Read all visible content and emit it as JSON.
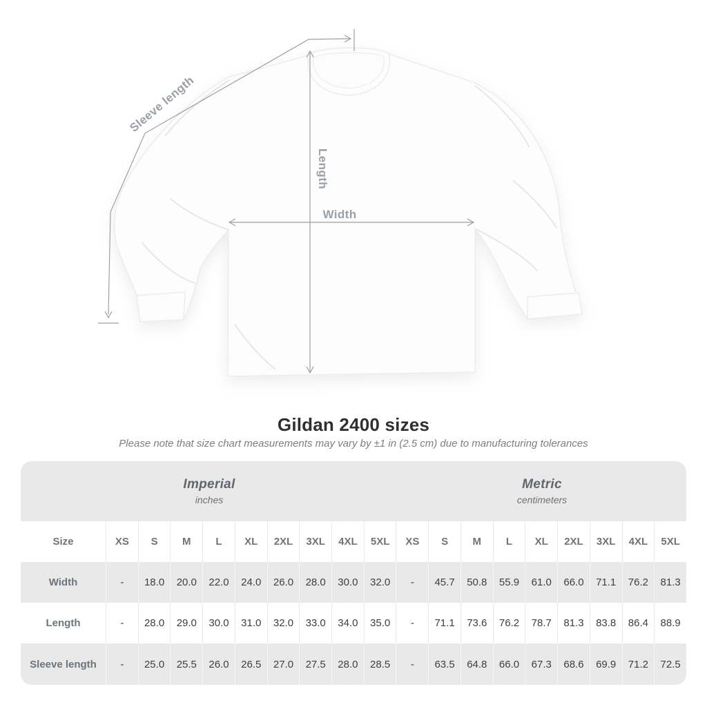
{
  "figure": {
    "labels": {
      "sleeve_length": "Sleeve length",
      "length": "Length",
      "width": "Width"
    },
    "line_color": "#9aa0a5"
  },
  "title": "Gildan 2400 sizes",
  "subtitle": "Please note that size chart measurements may vary by ±1 in (2.5 cm) due to manufacturing tolerances",
  "table": {
    "unit_groups": [
      {
        "name": "Imperial",
        "unit": "inches"
      },
      {
        "name": "Metric",
        "unit": "centimeters"
      }
    ],
    "size_header": "Size",
    "sizes": [
      "XS",
      "S",
      "M",
      "L",
      "XL",
      "2XL",
      "3XL",
      "4XL",
      "5XL"
    ],
    "rows": [
      {
        "label": "Width",
        "imperial": [
          "-",
          "18.0",
          "20.0",
          "22.0",
          "24.0",
          "26.0",
          "28.0",
          "30.0",
          "32.0"
        ],
        "metric": [
          "-",
          "45.7",
          "50.8",
          "55.9",
          "61.0",
          "66.0",
          "71.1",
          "76.2",
          "81.3"
        ]
      },
      {
        "label": "Length",
        "imperial": [
          "-",
          "28.0",
          "29.0",
          "30.0",
          "31.0",
          "32.0",
          "33.0",
          "34.0",
          "35.0"
        ],
        "metric": [
          "-",
          "71.1",
          "73.6",
          "76.2",
          "78.7",
          "81.3",
          "83.8",
          "86.4",
          "88.9"
        ]
      },
      {
        "label": "Sleeve length",
        "imperial": [
          "-",
          "25.0",
          "25.5",
          "26.0",
          "26.5",
          "27.0",
          "27.5",
          "28.0",
          "28.5"
        ],
        "metric": [
          "-",
          "63.5",
          "64.8",
          "66.0",
          "67.3",
          "68.6",
          "69.9",
          "71.2",
          "72.5"
        ]
      }
    ],
    "colors": {
      "container_bg": "#e9e9e9",
      "alt_row_bg": "#ffffff",
      "header_text": "#6d747a",
      "value_text": "#3a3f44"
    }
  },
  "chart_data": {
    "type": "table",
    "title": "Gildan 2400 sizes",
    "columns": [
      "Size",
      "XS",
      "S",
      "M",
      "L",
      "XL",
      "2XL",
      "3XL",
      "4XL",
      "5XL"
    ],
    "series": [
      {
        "name": "Width (inches)",
        "values": [
          null,
          18.0,
          20.0,
          22.0,
          24.0,
          26.0,
          28.0,
          30.0,
          32.0
        ]
      },
      {
        "name": "Length (inches)",
        "values": [
          null,
          28.0,
          29.0,
          30.0,
          31.0,
          32.0,
          33.0,
          34.0,
          35.0
        ]
      },
      {
        "name": "Sleeve length (inches)",
        "values": [
          null,
          25.0,
          25.5,
          26.0,
          26.5,
          27.0,
          27.5,
          28.0,
          28.5
        ]
      },
      {
        "name": "Width (cm)",
        "values": [
          null,
          45.7,
          50.8,
          55.9,
          61.0,
          66.0,
          71.1,
          76.2,
          81.3
        ]
      },
      {
        "name": "Length (cm)",
        "values": [
          null,
          71.1,
          73.6,
          76.2,
          78.7,
          81.3,
          83.8,
          86.4,
          88.9
        ]
      },
      {
        "name": "Sleeve length (cm)",
        "values": [
          null,
          63.5,
          64.8,
          66.0,
          67.3,
          68.6,
          69.9,
          71.2,
          72.5
        ]
      }
    ]
  }
}
